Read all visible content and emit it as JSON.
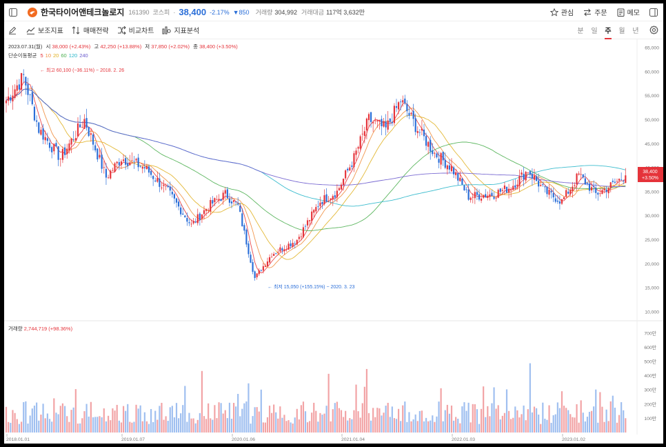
{
  "header": {
    "stock_name": "한국타이어앤테크놀로지",
    "code": "161390",
    "market": "코스피",
    "price": "38,400",
    "change_pct": "-2.17%",
    "change_amt": "▼850",
    "volume_label": "거래량",
    "volume": "304,992",
    "amount_label": "거래대금",
    "amount": "117억 3,632만",
    "buttons": {
      "favorite": "관심",
      "order": "주문",
      "memo": "메모"
    }
  },
  "toolbar": {
    "indicators": "보조지표",
    "strategy": "매매전략",
    "compare": "비교차트",
    "analysis": "지표분석",
    "periods": [
      "분",
      "일",
      "주",
      "월",
      "년"
    ],
    "active_period": "주"
  },
  "info": {
    "date": "2023.07.31(월)",
    "open_label": "시",
    "open": "38,000",
    "open_pct": "(+2.43%)",
    "high_label": "고",
    "high": "42,250",
    "high_pct": "(+13.88%)",
    "low_label": "저",
    "low": "37,850",
    "low_pct": "(+2.02%)",
    "close_label": "종",
    "close": "38,400",
    "close_pct": "(+3.50%)",
    "ma_label": "단순이동평균",
    "ma_periods": [
      "5",
      "10",
      "20",
      "60",
      "120",
      "240"
    ]
  },
  "volume_info": {
    "label": "거래량",
    "value": "2,744,719",
    "pct": "(+98.36%)"
  },
  "colors": {
    "up": "#e5333a",
    "down": "#2a6ed8",
    "ma5": "#e5333a",
    "ma10": "#f08c3c",
    "ma20": "#e0b020",
    "ma60": "#4caf50",
    "ma120": "#26b5c9",
    "ma240": "#6a5acd"
  },
  "chart_data": {
    "type": "candlestick",
    "price_axis": {
      "ticks": [
        "65,000",
        "60,000",
        "55,000",
        "50,000",
        "45,000",
        "40,000",
        "35,000",
        "30,000",
        "25,000",
        "20,000",
        "15,000",
        "10,000"
      ],
      "ylim": [
        10000,
        65000
      ]
    },
    "volume_axis": {
      "ticks": [
        "700만",
        "600만",
        "500만",
        "400만",
        "300만",
        "200만",
        "100만"
      ]
    },
    "x_ticks": [
      "2018.01.01",
      "2019.01.07",
      "2020.01.06",
      "2021.01.04",
      "2022.01.03",
      "2023.01.02"
    ],
    "current_price_label": "38,400",
    "current_price_pct": "+3.50%",
    "current_price": 38400,
    "max_annotation": "← 최고 60,100 (−36.11%) − 2018. 2. 26",
    "min_annotation": "← 최저 15,050 (+155.15%) − 2020. 3. 23",
    "weekly_close_path": [
      [
        "2018.01.01",
        54000
      ],
      [
        "2018.02.26",
        59000
      ],
      [
        "2018.04.16",
        48000
      ],
      [
        "2018.06.25",
        42000
      ],
      [
        "2018.09.10",
        50000
      ],
      [
        "2018.11.19",
        38000
      ],
      [
        "2019.01.07",
        42000
      ],
      [
        "2019.03.25",
        40000
      ],
      [
        "2019.06.10",
        35000
      ],
      [
        "2019.08.26",
        28000
      ],
      [
        "2019.10.21",
        32000
      ],
      [
        "2019.12.16",
        34500
      ],
      [
        "2020.01.27",
        32000
      ],
      [
        "2020.03.23",
        17000
      ],
      [
        "2020.05.18",
        22000
      ],
      [
        "2020.08.10",
        25000
      ],
      [
        "2020.10.26",
        33000
      ],
      [
        "2020.12.21",
        35000
      ],
      [
        "2021.02.15",
        42000
      ],
      [
        "2021.04.05",
        50000
      ],
      [
        "2021.05.31",
        48000
      ],
      [
        "2021.07.19",
        54000
      ],
      [
        "2021.09.13",
        48000
      ],
      [
        "2021.11.08",
        43000
      ],
      [
        "2022.01.03",
        40000
      ],
      [
        "2022.02.28",
        34000
      ],
      [
        "2022.05.23",
        34500
      ],
      [
        "2022.07.18",
        36000
      ],
      [
        "2022.09.12",
        39500
      ],
      [
        "2022.11.07",
        35000
      ],
      [
        "2023.01.02",
        33000
      ],
      [
        "2023.02.27",
        38500
      ],
      [
        "2023.04.24",
        34500
      ],
      [
        "2023.06.19",
        36500
      ],
      [
        "2023.07.31",
        38400
      ]
    ]
  }
}
